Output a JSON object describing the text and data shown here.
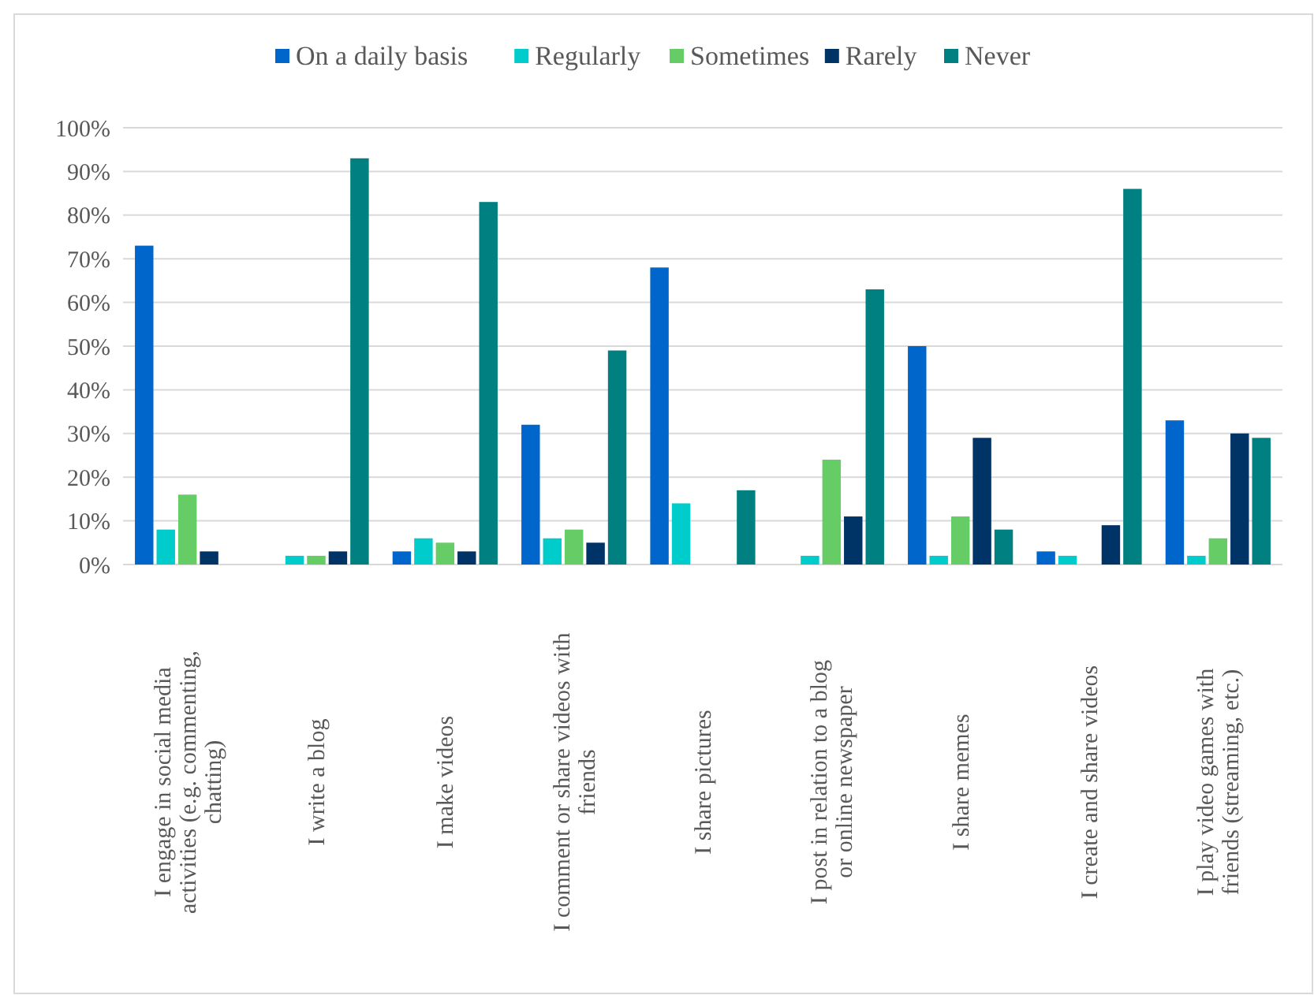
{
  "chart_data": {
    "type": "bar",
    "categories": [
      "I engage in social media activities (e.g. commenting, chatting)",
      "I write a blog",
      "I make videos",
      "I comment or share videos with friends",
      "I share pictures",
      "I post in relation to a blog or online newspaper",
      "I share memes",
      "I create and share videos",
      "I play video games with friends (streaming, etc.)"
    ],
    "series": [
      {
        "name": "On a daily basis",
        "color": "#0066cc",
        "values": [
          73,
          0,
          3,
          32,
          68,
          0,
          50,
          3,
          33
        ]
      },
      {
        "name": "Regularly",
        "color": "#00cccc",
        "values": [
          8,
          2,
          6,
          6,
          14,
          2,
          2,
          2,
          2
        ]
      },
      {
        "name": "Sometimes",
        "color": "#66cc66",
        "values": [
          16,
          2,
          5,
          8,
          0,
          24,
          11,
          0,
          6
        ]
      },
      {
        "name": "Rarely",
        "color": "#003366",
        "values": [
          3,
          3,
          3,
          5,
          0,
          11,
          29,
          9,
          30
        ]
      },
      {
        "name": "Never",
        "color": "#008080",
        "values": [
          0,
          93,
          83,
          49,
          17,
          63,
          8,
          86,
          29
        ]
      }
    ],
    "ylim": [
      0,
      100
    ],
    "yticks": [
      {
        "value": 0,
        "label": "0%"
      },
      {
        "value": 10,
        "label": "10%"
      },
      {
        "value": 20,
        "label": "20%"
      },
      {
        "value": 30,
        "label": "30%"
      },
      {
        "value": 40,
        "label": "40%"
      },
      {
        "value": 50,
        "label": "50%"
      },
      {
        "value": 60,
        "label": "60%"
      },
      {
        "value": 70,
        "label": "70%"
      },
      {
        "value": 80,
        "label": "80%"
      },
      {
        "value": 90,
        "label": "90%"
      },
      {
        "value": 100,
        "label": "100%"
      }
    ],
    "grid": "y",
    "legend": "top"
  }
}
